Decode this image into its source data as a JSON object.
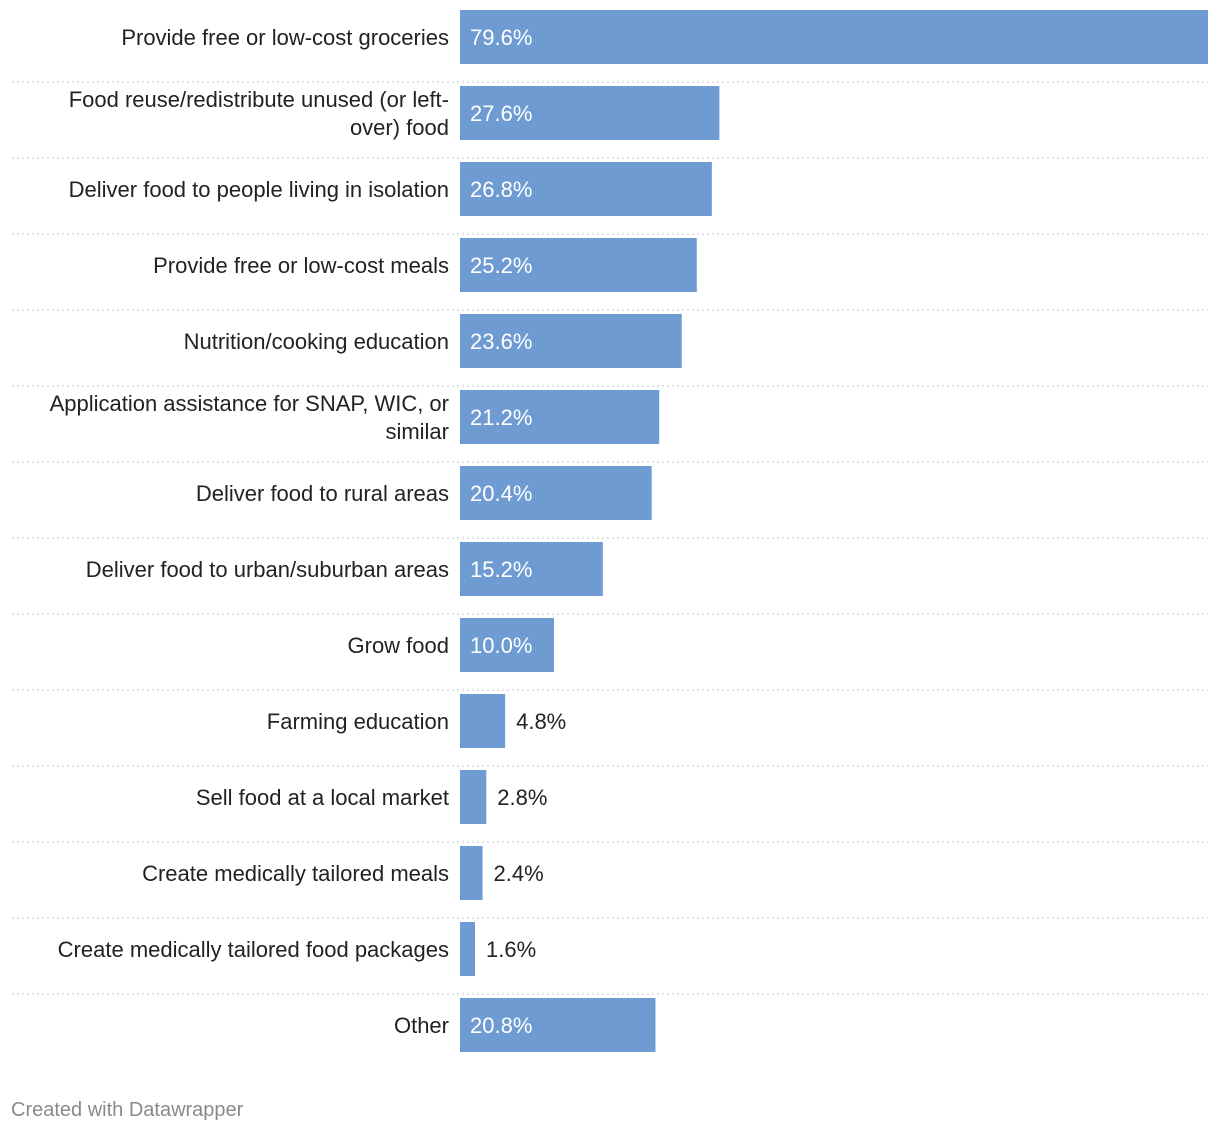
{
  "chart_data": {
    "type": "bar",
    "orientation": "horizontal",
    "categories": [
      "Provide free or low-cost groceries",
      "Food reuse/redistribute unused (or left-over) food",
      "Deliver food to people living in isolation",
      "Provide free or low-cost meals",
      "Nutrition/cooking education",
      "Application assistance for SNAP, WIC, or similar",
      "Deliver food to rural areas",
      "Deliver food to urban/suburban areas",
      "Grow food",
      "Farming education",
      "Sell food at a local market",
      "Create medically tailored meals",
      "Create medically tailored food packages",
      "Other"
    ],
    "label_lines": [
      [
        "Provide free or low-cost groceries"
      ],
      [
        "Food reuse/redistribute unused (or left-",
        "over) food"
      ],
      [
        "Deliver food to people living in isolation"
      ],
      [
        "Provide free or low-cost meals"
      ],
      [
        "Nutrition/cooking education"
      ],
      [
        "Application assistance for SNAP, WIC, or",
        "similar"
      ],
      [
        "Deliver food to rural areas"
      ],
      [
        "Deliver food to urban/suburban areas"
      ],
      [
        "Grow food"
      ],
      [
        "Farming education"
      ],
      [
        "Sell food at a local market"
      ],
      [
        "Create medically tailored meals"
      ],
      [
        "Create medically tailored food packages"
      ],
      [
        "Other"
      ]
    ],
    "values": [
      79.6,
      27.6,
      26.8,
      25.2,
      23.6,
      21.2,
      20.4,
      15.2,
      10.0,
      4.8,
      2.8,
      2.4,
      1.6,
      20.8
    ],
    "value_labels": [
      "79.6%",
      "27.6%",
      "26.8%",
      "25.2%",
      "23.6%",
      "21.2%",
      "20.4%",
      "15.2%",
      "10.0%",
      "4.8%",
      "2.8%",
      "2.4%",
      "1.6%",
      "20.8%"
    ],
    "xlim": [
      0,
      79.6
    ],
    "bar_color": "#6f9bd3",
    "title": "",
    "xlabel": "",
    "ylabel": ""
  },
  "footer": {
    "credit": "Created with Datawrapper"
  }
}
